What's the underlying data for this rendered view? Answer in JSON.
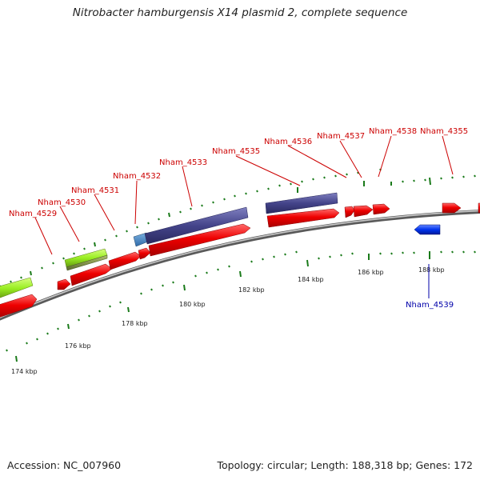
{
  "title": "Nitrobacter hamburgensis X14 plasmid 2, complete sequence",
  "footer": {
    "accession": "Accession: NC_007960",
    "summary": "Topology: circular; Length: 188,318 bp; Genes: 172"
  },
  "colors": {
    "backbone": "#8a8a8a",
    "cds_forward": "#ee0000",
    "cds_reverse": "#0033ee",
    "tick": "#1a7a1a",
    "label_forward": "#cc0000",
    "label_reverse": "#0000aa"
  },
  "scale_labels": [
    "174 kbp",
    "176 kbp",
    "178 kbp",
    "180 kbp",
    "182 kbp",
    "184 kbp",
    "186 kbp",
    "188 kbp"
  ],
  "gene_labels_forward": [
    "Nham_4529",
    "Nham_4530",
    "Nham_4531",
    "Nham_4532",
    "Nham_4533",
    "Nham_4535",
    "Nham_4536",
    "Nham_4537",
    "Nham_4538",
    "Nham_4355"
  ],
  "gene_labels_reverse": [
    "Nham_4539"
  ]
}
